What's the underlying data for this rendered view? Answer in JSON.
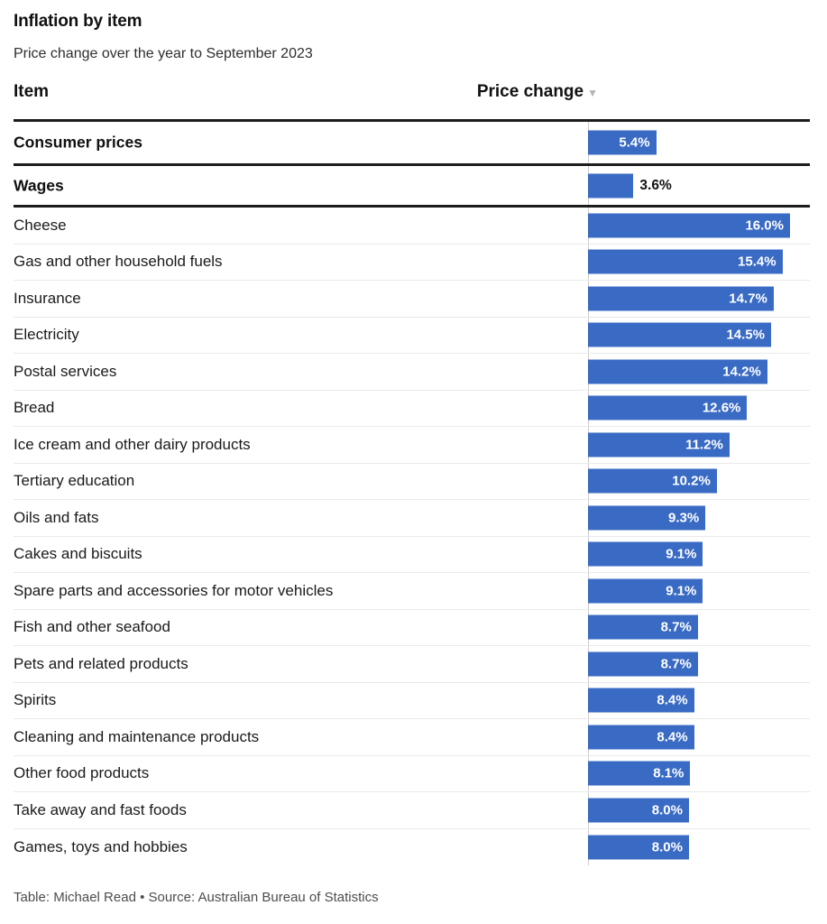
{
  "header": {
    "title": "Inflation by item",
    "subtitle": "Price change over the year to September 2023"
  },
  "table": {
    "columns": [
      "Item",
      "Price change"
    ],
    "sort_icon": "▼"
  },
  "chart_data": {
    "type": "bar",
    "orientation": "horizontal",
    "unit": "%",
    "xlim": [
      0,
      16
    ],
    "bar_color": "#3a6bc4",
    "value_label_inside_color": "#ffffff",
    "value_label_outside_color": "#111111",
    "summary_rows": [
      {
        "label": "Consumer prices",
        "value": 5.4,
        "value_label": "5.4%",
        "value_label_position": "inside"
      },
      {
        "label": "Wages",
        "value": 3.6,
        "value_label": "3.6%",
        "value_label_position": "outside"
      }
    ],
    "categories": [
      "Cheese",
      "Gas and other household fuels",
      "Insurance",
      "Electricity",
      "Postal services",
      "Bread",
      "Ice cream and other dairy products",
      "Tertiary education",
      "Oils and fats",
      "Cakes and biscuits",
      "Spare parts and accessories for motor vehicles",
      "Fish and other seafood",
      "Pets and related products",
      "Spirits",
      "Cleaning and maintenance products",
      "Other food products",
      "Take away and fast foods",
      "Games, toys and hobbies"
    ],
    "values": [
      16.0,
      15.4,
      14.7,
      14.5,
      14.2,
      12.6,
      11.2,
      10.2,
      9.3,
      9.1,
      9.1,
      8.7,
      8.7,
      8.4,
      8.4,
      8.1,
      8.0,
      8.0
    ],
    "value_labels": [
      "16.0%",
      "15.4%",
      "14.7%",
      "14.5%",
      "14.2%",
      "12.6%",
      "11.2%",
      "10.2%",
      "9.3%",
      "9.1%",
      "9.1%",
      "8.7%",
      "8.7%",
      "8.4%",
      "8.4%",
      "8.1%",
      "8.0%",
      "8.0%"
    ]
  },
  "footer": {
    "credit": "Table: Michael Read • Source: Australian Bureau of Statistics"
  }
}
